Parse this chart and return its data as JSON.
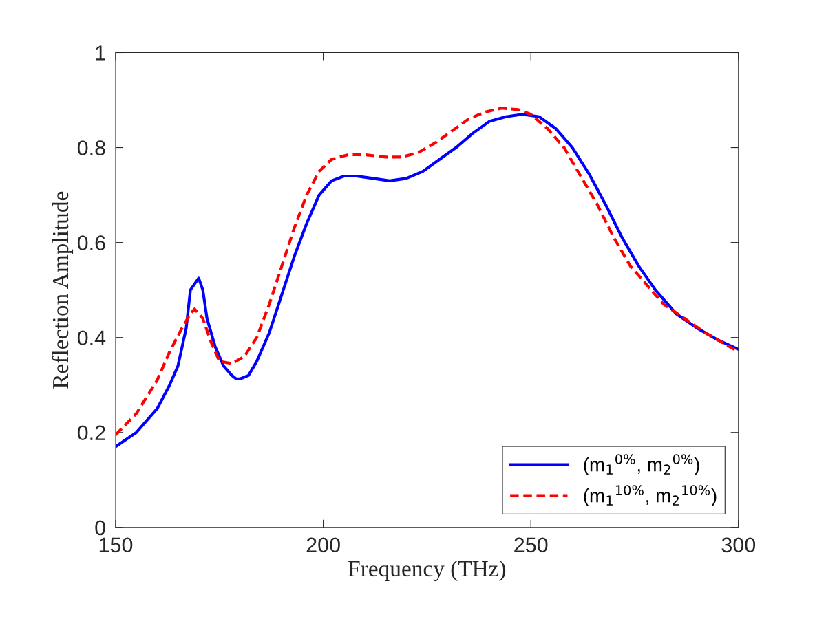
{
  "chart_data": {
    "type": "line",
    "xlabel": "Frequency (THz)",
    "ylabel": "Reflection Amplitude",
    "xlim": [
      150,
      300
    ],
    "xticks": [
      150,
      200,
      250,
      300
    ],
    "ylim": [
      0,
      1
    ],
    "yticks": [
      0,
      0.2,
      0.4,
      0.6,
      0.8,
      1
    ],
    "grid": false,
    "legend": "bottom right",
    "series": [
      {
        "name": "(m$_{1}$$^{0%}$, m$_{2}$$^{0%}$)",
        "color": "#0000ff",
        "line_style": "solid",
        "x": [
          150,
          155,
          160,
          163,
          165,
          167,
          168,
          170,
          171,
          172,
          174,
          176,
          178,
          179,
          180,
          182,
          184,
          187,
          190,
          193,
          196,
          199,
          202,
          205,
          208,
          212,
          216,
          220,
          224,
          228,
          232,
          236,
          240,
          244,
          248,
          252,
          256,
          260,
          264,
          268,
          272,
          276,
          280,
          285,
          290,
          295,
          300
        ],
        "values": [
          0.17,
          0.2,
          0.25,
          0.3,
          0.34,
          0.42,
          0.5,
          0.525,
          0.5,
          0.44,
          0.38,
          0.34,
          0.32,
          0.313,
          0.313,
          0.32,
          0.35,
          0.41,
          0.49,
          0.57,
          0.64,
          0.7,
          0.73,
          0.74,
          0.74,
          0.735,
          0.73,
          0.735,
          0.75,
          0.775,
          0.8,
          0.83,
          0.855,
          0.865,
          0.87,
          0.865,
          0.84,
          0.8,
          0.745,
          0.68,
          0.61,
          0.55,
          0.5,
          0.45,
          0.42,
          0.395,
          0.375
        ]
      },
      {
        "name": "(m$_{1}$$^{10%}$, m$_{2}$$^{10%}$)",
        "color": "#ff0000",
        "line_style": "dashed",
        "x": [
          150,
          155,
          160,
          163,
          166,
          168,
          169,
          171,
          173,
          175,
          178,
          181,
          184,
          187,
          190,
          193,
          196,
          199,
          202,
          206,
          210,
          215,
          219,
          223,
          227,
          231,
          235,
          239,
          243,
          247,
          250,
          254,
          258,
          262,
          266,
          270,
          274,
          278,
          282,
          287,
          292,
          296,
          300
        ],
        "values": [
          0.195,
          0.24,
          0.31,
          0.37,
          0.42,
          0.45,
          0.46,
          0.44,
          0.39,
          0.35,
          0.345,
          0.36,
          0.4,
          0.47,
          0.55,
          0.63,
          0.7,
          0.75,
          0.775,
          0.785,
          0.785,
          0.78,
          0.78,
          0.79,
          0.81,
          0.835,
          0.86,
          0.875,
          0.883,
          0.88,
          0.87,
          0.84,
          0.8,
          0.74,
          0.68,
          0.61,
          0.55,
          0.51,
          0.47,
          0.44,
          0.41,
          0.39,
          0.37
        ]
      }
    ]
  }
}
